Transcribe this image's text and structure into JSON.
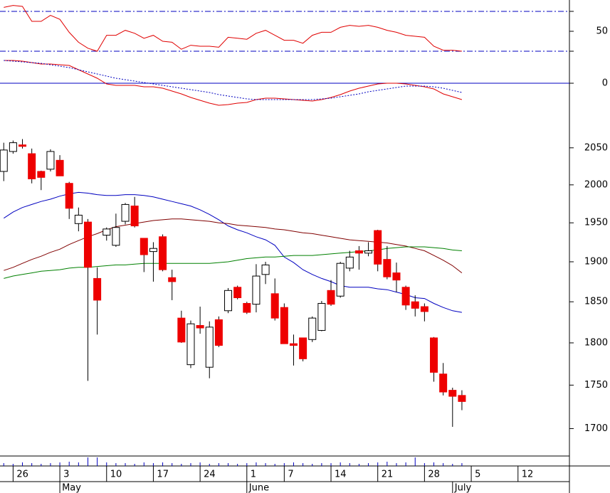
{
  "chart_data": [
    {
      "type": "line",
      "series": [
        {
          "color": "#e00000",
          "values": [
            74,
            76,
            75,
            60,
            60,
            66,
            62,
            49,
            39,
            33,
            30,
            46,
            46,
            51,
            48,
            43,
            46,
            40,
            39,
            32,
            36,
            35,
            35,
            34,
            44,
            43,
            42,
            48,
            51,
            46,
            41,
            41,
            38,
            46,
            49,
            49,
            54,
            56,
            55,
            56,
            54,
            51,
            49,
            46,
            45,
            44,
            35,
            31,
            31,
            30
          ]
        }
      ],
      "ylim": [
        10,
        81.4
      ],
      "yticks": [
        50
      ],
      "hlines": [
        70,
        30
      ],
      "hline_color": "#0000c0"
    },
    {
      "type": "line",
      "series": [
        {
          "color": "#e00000",
          "values": [
            32,
            32,
            31,
            29,
            27,
            27,
            26,
            25,
            19,
            13,
            7,
            -1,
            -3,
            -3,
            -3,
            -5,
            -5,
            -7,
            -11,
            -15,
            -20,
            -24,
            -28,
            -31,
            -30,
            -28,
            -27,
            -23,
            -21,
            -21,
            -22,
            -23,
            -24,
            -25,
            -23,
            -20,
            -16,
            -11,
            -7,
            -4,
            -1,
            0,
            0,
            -1,
            -3,
            -5,
            -8,
            -15,
            -19,
            -23
          ]
        },
        {
          "color": "#0000c0",
          "dashed": true,
          "values": [
            32,
            31,
            30,
            29,
            28,
            26,
            24,
            22,
            19,
            16,
            13,
            10,
            7,
            5,
            3,
            1,
            -1,
            -3,
            -5,
            -7,
            -9,
            -11,
            -13,
            -16,
            -18,
            -20,
            -22,
            -23,
            -23,
            -23,
            -23,
            -23,
            -23,
            -23,
            -22,
            -21,
            -19,
            -17,
            -15,
            -12,
            -10,
            -8,
            -6,
            -4,
            -4,
            -4,
            -5,
            -7,
            -10,
            -13
          ]
        }
      ],
      "ylim": [
        -43,
        37
      ],
      "yticks": [
        0
      ],
      "grid": true,
      "grid_color": "#0000c0"
    },
    {
      "type": "candlestick",
      "open": [
        2018,
        2045,
        2054,
        2042,
        2018,
        2021,
        2033,
        2002,
        1949,
        1951,
        1879,
        1934,
        1921,
        1952,
        1972,
        1930,
        1913,
        1932,
        1880,
        1830,
        1774,
        1821,
        1771,
        1828,
        1839,
        1868,
        1848,
        1847,
        1884,
        1860,
        1843,
        1799,
        1806,
        1804,
        1815,
        1864,
        1857,
        1892,
        1914,
        1911,
        1940,
        1903,
        1886,
        1868,
        1850,
        1844,
        1806,
        1763,
        1744,
        1738
      ],
      "high": [
        2057,
        2060,
        2062,
        2049,
        2019,
        2048,
        2040,
        2004,
        1970,
        1955,
        1893,
        1944,
        1962,
        1976,
        1984,
        1930,
        1925,
        1935,
        1890,
        1839,
        1827,
        1844,
        1826,
        1832,
        1867,
        1870,
        1850,
        1897,
        1900,
        1879,
        1848,
        1810,
        1806,
        1832,
        1851,
        1877,
        1900,
        1914,
        1920,
        1925,
        1941,
        1920,
        1899,
        1870,
        1858,
        1848,
        1807,
        1776,
        1747,
        1744
      ],
      "low": [
        2005,
        2042,
        2049,
        2002,
        1993,
        2018,
        2012,
        1955,
        1939,
        1755,
        1810,
        1927,
        1919,
        1948,
        1944,
        1887,
        1875,
        1888,
        1852,
        1800,
        1770,
        1811,
        1758,
        1795,
        1836,
        1853,
        1835,
        1837,
        1872,
        1827,
        1799,
        1773,
        1778,
        1801,
        1814,
        1845,
        1855,
        1888,
        1890,
        1907,
        1888,
        1878,
        1862,
        1840,
        1832,
        1826,
        1754,
        1738,
        1702,
        1721
      ],
      "close": [
        2047,
        2057,
        2052,
        2008,
        2010,
        2045,
        2012,
        1969,
        1960,
        1893,
        1852,
        1942,
        1944,
        1974,
        1946,
        1909,
        1917,
        1890,
        1875,
        1801,
        1823,
        1818,
        1819,
        1797,
        1864,
        1855,
        1837,
        1882,
        1896,
        1830,
        1799,
        1797,
        1781,
        1830,
        1848,
        1847,
        1898,
        1906,
        1911,
        1914,
        1897,
        1881,
        1877,
        1846,
        1842,
        1838,
        1765,
        1742,
        1737,
        1731
      ],
      "up_color": "#ffffff",
      "down_color": "#ee0000",
      "series": [
        {
          "color": "#0000c0",
          "values": [
            1956,
            1964,
            1970,
            1974,
            1978,
            1981,
            1985,
            1988,
            1990,
            1989,
            1987,
            1986,
            1986,
            1987,
            1987,
            1986,
            1984,
            1981,
            1978,
            1975,
            1972,
            1967,
            1961,
            1954,
            1946,
            1941,
            1937,
            1932,
            1928,
            1921,
            1906,
            1899,
            1890,
            1884,
            1879,
            1875,
            1870,
            1868,
            1868,
            1868,
            1866,
            1865,
            1862,
            1859,
            1855,
            1854,
            1848,
            1843,
            1839,
            1837
          ]
        },
        {
          "color": "#800000",
          "values": [
            1889,
            1893,
            1898,
            1903,
            1907,
            1912,
            1916,
            1922,
            1927,
            1932,
            1936,
            1941,
            1945,
            1947,
            1949,
            1951,
            1953,
            1954,
            1955,
            1955,
            1954,
            1953,
            1952,
            1950,
            1949,
            1947,
            1946,
            1945,
            1944,
            1942,
            1941,
            1939,
            1937,
            1936,
            1934,
            1932,
            1930,
            1928,
            1927,
            1926,
            1925,
            1924,
            1922,
            1920,
            1917,
            1914,
            1908,
            1902,
            1895,
            1886
          ]
        },
        {
          "color": "#008000",
          "values": [
            1879,
            1882,
            1884,
            1886,
            1888,
            1889,
            1890,
            1892,
            1893,
            1893,
            1894,
            1895,
            1896,
            1896,
            1897,
            1898,
            1898,
            1898,
            1898,
            1898,
            1898,
            1898,
            1898,
            1899,
            1900,
            1902,
            1904,
            1905,
            1906,
            1906,
            1907,
            1908,
            1908,
            1908,
            1909,
            1910,
            1911,
            1912,
            1913,
            1914,
            1915,
            1917,
            1918,
            1919,
            1919,
            1919,
            1918,
            1917,
            1915,
            1914
          ]
        }
      ],
      "log_scale": true,
      "ylim": [
        1670,
        2097
      ],
      "yticks": [
        1700,
        1750,
        1800,
        1850,
        1900,
        1950,
        2000,
        2050
      ],
      "xlim": [
        -0.4,
        60.5
      ],
      "xticks": [
        {
          "value": 1,
          "label": "26"
        },
        {
          "value": 6,
          "label": "3"
        },
        {
          "value": 11,
          "label": "10"
        },
        {
          "value": 16,
          "label": "17"
        },
        {
          "value": 21,
          "label": "24"
        },
        {
          "value": 26,
          "label": "1"
        },
        {
          "value": 30,
          "label": "7"
        },
        {
          "value": 35,
          "label": "14"
        },
        {
          "value": 40,
          "label": "21"
        },
        {
          "value": 45,
          "label": "28"
        },
        {
          "value": 50,
          "label": "5"
        },
        {
          "value": 55,
          "label": "12"
        }
      ],
      "month_ticks": [
        {
          "value": 6,
          "label": "May"
        },
        {
          "value": 26,
          "label": "June"
        },
        {
          "value": 48,
          "label": "July"
        }
      ]
    },
    {
      "type": "bar",
      "color": "#0000c0",
      "ylim": [
        0,
        14
      ],
      "values": [
        4,
        3,
        5,
        4,
        3,
        4,
        5,
        6,
        5,
        12,
        12,
        5,
        4,
        4,
        3,
        5,
        4,
        5,
        4,
        3,
        4,
        5,
        3,
        4,
        4,
        3,
        4,
        5,
        4,
        3,
        4,
        5,
        4,
        3,
        4,
        4,
        5,
        4,
        3,
        4,
        5,
        6,
        4,
        5,
        12,
        4,
        5,
        4,
        3,
        4
      ]
    }
  ]
}
